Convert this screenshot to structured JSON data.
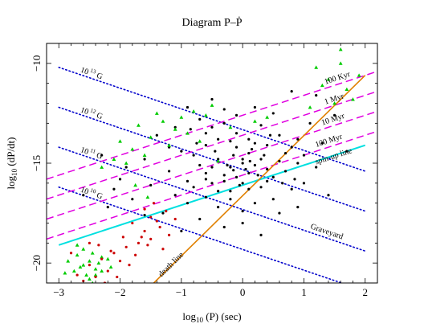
{
  "chart_data": {
    "type": "scatter",
    "title": "Diagram P–Ṗ",
    "xlabel": "log10 (P) (sec)",
    "ylabel": "log10 (dP/dt)",
    "xlim": [
      -3.2,
      2.2
    ],
    "ylim": [
      -21,
      -9
    ],
    "xticks": [
      -3,
      -2,
      -1,
      0,
      1,
      2
    ],
    "yticks": [
      -20,
      -15,
      -10
    ],
    "grid": false,
    "colors": {
      "black": "#000000",
      "green": "#00cc00",
      "red": "#cc0000",
      "field": "#0000cc",
      "age": "#e000e0",
      "spinup": "#00e0e0",
      "death": "#e08000"
    },
    "field_lines": [
      {
        "label": "10",
        "exponent": "13",
        "suffix": "G",
        "x": [
          -3,
          2
        ],
        "y": [
          -10.2,
          -15.4
        ]
      },
      {
        "label": "10",
        "exponent": "12",
        "suffix": "G",
        "x": [
          -3,
          2
        ],
        "y": [
          -12.2,
          -17.4
        ]
      },
      {
        "label": "10",
        "exponent": "11",
        "suffix": "G",
        "x": [
          -3,
          2
        ],
        "y": [
          -14.2,
          -19.4
        ]
      },
      {
        "label": "10",
        "exponent": "10",
        "suffix": "G",
        "x": [
          -3,
          2
        ],
        "y": [
          -16.2,
          -21.4
        ]
      }
    ],
    "age_lines": [
      {
        "label": "100 Kyr",
        "x": [
          -3.2,
          2.2
        ],
        "y": [
          -15.8,
          -10.4
        ]
      },
      {
        "label": "1 Myr",
        "x": [
          -3.2,
          2.2
        ],
        "y": [
          -16.8,
          -11.4
        ]
      },
      {
        "label": "10 Myr",
        "x": [
          -3.2,
          2.2
        ],
        "y": [
          -17.8,
          -12.4
        ]
      },
      {
        "label": "100 Myr",
        "x": [
          -3.2,
          2.2
        ],
        "y": [
          -18.8,
          -13.4
        ]
      }
    ],
    "spinup_line": {
      "label": "spin-up line",
      "x": [
        -3,
        2
      ],
      "y": [
        -19.1,
        -14.1
      ]
    },
    "death_line": {
      "label": "death line",
      "x": [
        -1.45,
        2.0
      ],
      "y": [
        -21,
        -10.6
      ]
    },
    "region_label": "Graveyard",
    "series": [
      {
        "name": "",
        "color": "black",
        "points": [
          [
            -0.6,
            -15.5
          ],
          [
            -0.4,
            -14.8
          ],
          [
            -0.2,
            -15.2
          ],
          [
            0.1,
            -14.5
          ],
          [
            -0.5,
            -16.0
          ],
          [
            -0.3,
            -15.6
          ],
          [
            0.0,
            -15.0
          ],
          [
            -0.1,
            -14.2
          ],
          [
            0.2,
            -15.1
          ],
          [
            0.4,
            -15.3
          ],
          [
            -0.7,
            -15.1
          ],
          [
            -0.8,
            -14.6
          ],
          [
            -0.2,
            -16.4
          ],
          [
            0.3,
            -14.8
          ],
          [
            0.5,
            -15.7
          ],
          [
            0.6,
            -14.9
          ],
          [
            -0.4,
            -13.8
          ],
          [
            -0.1,
            -13.5
          ],
          [
            0.0,
            -16.0
          ],
          [
            0.3,
            -16.2
          ],
          [
            -0.9,
            -15.9
          ],
          [
            -0.6,
            -14.1
          ],
          [
            -0.5,
            -13.2
          ],
          [
            -0.3,
            -13.0
          ],
          [
            0.1,
            -13.8
          ],
          [
            0.4,
            -14.1
          ],
          [
            0.7,
            -15.4
          ],
          [
            0.8,
            -16.3
          ],
          [
            -0.2,
            -16.8
          ],
          [
            0.2,
            -17.0
          ],
          [
            -1.0,
            -14.4
          ],
          [
            -0.6,
            -16.7
          ],
          [
            -0.4,
            -17.2
          ],
          [
            0.0,
            -17.4
          ],
          [
            0.5,
            -16.8
          ],
          [
            0.9,
            -15.0
          ],
          [
            1.0,
            -14.6
          ],
          [
            -0.7,
            -12.8
          ],
          [
            -0.1,
            -12.6
          ],
          [
            0.3,
            -13.1
          ],
          [
            0.6,
            -13.6
          ],
          [
            0.8,
            -14.2
          ],
          [
            -0.3,
            -15.9
          ],
          [
            -0.1,
            -15.7
          ],
          [
            0.1,
            -16.3
          ],
          [
            -0.5,
            -15.2
          ],
          [
            0.2,
            -14.0
          ],
          [
            -0.8,
            -16.2
          ],
          [
            -0.2,
            -13.9
          ],
          [
            0.0,
            -14.8
          ],
          [
            0.4,
            -15.9
          ],
          [
            0.7,
            -14.5
          ],
          [
            -0.4,
            -16.4
          ],
          [
            -0.6,
            -15.8
          ],
          [
            0.1,
            -15.5
          ],
          [
            -0.9,
            -17.0
          ],
          [
            -1.1,
            -16.6
          ],
          [
            -1.2,
            -15.4
          ],
          [
            0.9,
            -13.8
          ],
          [
            1.2,
            -15.2
          ],
          [
            1.1,
            -13.0
          ],
          [
            0.5,
            -12.5
          ],
          [
            0.2,
            -12.2
          ],
          [
            -0.3,
            -12.3
          ],
          [
            -0.6,
            -13.5
          ],
          [
            1.0,
            -16.0
          ],
          [
            -0.15,
            -14.6
          ],
          [
            0.15,
            -14.3
          ],
          [
            0.35,
            -14.6
          ],
          [
            -0.45,
            -14.4
          ],
          [
            0.05,
            -15.3
          ],
          [
            0.25,
            -15.6
          ],
          [
            -0.25,
            -15.1
          ],
          [
            -0.05,
            -16.1
          ],
          [
            0.45,
            -13.6
          ],
          [
            -0.75,
            -14.0
          ],
          [
            0.65,
            -16.0
          ],
          [
            -0.85,
            -13.3
          ],
          [
            0.85,
            -15.8
          ],
          [
            1.3,
            -14.0
          ],
          [
            -1.3,
            -17.5
          ],
          [
            -1.5,
            -16.1
          ],
          [
            0.0,
            -18.0
          ],
          [
            0.6,
            -17.5
          ],
          [
            -0.3,
            -18.2
          ],
          [
            1.4,
            -16.6
          ],
          [
            -1.0,
            -18.4
          ],
          [
            0.3,
            -18.6
          ],
          [
            -0.7,
            -17.8
          ],
          [
            0.9,
            -17.2
          ],
          [
            -2.2,
            -17.2
          ],
          [
            -2.1,
            -16.3
          ],
          [
            -1.8,
            -16.8
          ],
          [
            -1.6,
            -17.6
          ],
          [
            -2.6,
            -16.6
          ],
          [
            1.5,
            -12.6
          ],
          [
            1.7,
            -14.4
          ],
          [
            1.2,
            -11.6
          ],
          [
            0.8,
            -11.4
          ],
          [
            -0.5,
            -11.8
          ],
          [
            -0.9,
            -12.2
          ],
          [
            -1.1,
            -13.2
          ],
          [
            -1.2,
            -14.2
          ],
          [
            -1.4,
            -13.6
          ],
          [
            -1.6,
            -14.8
          ],
          [
            -1.9,
            -15.2
          ],
          [
            -2.0,
            -15.8
          ],
          [
            -2.3,
            -14.6
          ],
          [
            -0.15,
            -15.35
          ],
          [
            0.12,
            -14.9
          ]
        ]
      },
      {
        "name": "",
        "color": "green",
        "points": [
          [
            1.6,
            -9.3
          ],
          [
            1.2,
            -10.2
          ],
          [
            1.4,
            -10.8
          ],
          [
            1.7,
            -11.3
          ],
          [
            1.5,
            -12.0
          ],
          [
            1.8,
            -11.8
          ],
          [
            1.3,
            -11.1
          ],
          [
            1.9,
            -10.6
          ],
          [
            1.1,
            -12.2
          ],
          [
            1.6,
            -10.0
          ],
          [
            -1.0,
            -12.7
          ],
          [
            -1.1,
            -13.3
          ],
          [
            -1.3,
            -12.9
          ],
          [
            -1.5,
            -13.7
          ],
          [
            -0.8,
            -12.4
          ],
          [
            -0.6,
            -12.6
          ],
          [
            -0.7,
            -13.9
          ],
          [
            -1.2,
            -14.1
          ],
          [
            -1.6,
            -14.6
          ],
          [
            -1.7,
            -13.1
          ],
          [
            -0.9,
            -13.5
          ],
          [
            -0.5,
            -12.1
          ],
          [
            -1.4,
            -12.5
          ],
          [
            -1.8,
            -14.3
          ],
          [
            -1.9,
            -15.0
          ],
          [
            -0.4,
            -14.9
          ],
          [
            -0.2,
            -13.2
          ],
          [
            0.2,
            -12.9
          ],
          [
            0.4,
            -12.7
          ],
          [
            -2.0,
            -13.9
          ],
          [
            -2.1,
            -14.8
          ],
          [
            -2.3,
            -15.2
          ],
          [
            -1.55,
            -16.7
          ],
          [
            -1.75,
            -16.1
          ],
          [
            -2.7,
            -19.6
          ],
          [
            -2.6,
            -20.1
          ],
          [
            -2.5,
            -19.9
          ],
          [
            -2.4,
            -20.3
          ],
          [
            -2.3,
            -19.7
          ],
          [
            -2.55,
            -20.6
          ],
          [
            -2.65,
            -20.2
          ],
          [
            -2.45,
            -19.5
          ],
          [
            -2.35,
            -20.0
          ],
          [
            -2.75,
            -20.4
          ],
          [
            -2.2,
            -19.8
          ],
          [
            -2.5,
            -20.8
          ],
          [
            -2.85,
            -19.9
          ],
          [
            -2.6,
            -19.3
          ],
          [
            -2.4,
            -20.6
          ],
          [
            -2.9,
            -20.5
          ],
          [
            -2.3,
            -20.4
          ],
          [
            -2.7,
            -19.1
          ],
          [
            -2.15,
            -20.2
          ],
          [
            -2.45,
            -21.0
          ]
        ]
      },
      {
        "name": "",
        "color": "red",
        "points": [
          [
            -2.5,
            -20.1
          ],
          [
            -2.3,
            -19.8
          ],
          [
            -2.1,
            -19.5
          ],
          [
            -1.9,
            -19.2
          ],
          [
            -1.7,
            -19.0
          ],
          [
            -1.5,
            -18.8
          ],
          [
            -1.3,
            -19.3
          ],
          [
            -1.6,
            -18.4
          ],
          [
            -1.4,
            -17.9
          ],
          [
            -1.2,
            -18.6
          ],
          [
            -2.0,
            -19.9
          ],
          [
            -2.2,
            -20.4
          ],
          [
            -2.4,
            -20.7
          ],
          [
            -2.6,
            -20.9
          ],
          [
            -2.7,
            -20.6
          ],
          [
            -2.8,
            -19.5
          ],
          [
            -2.35,
            -19.1
          ],
          [
            -1.8,
            -18.0
          ],
          [
            -1.6,
            -17.3
          ],
          [
            -1.45,
            -17.0
          ],
          [
            -1.75,
            -19.6
          ],
          [
            -1.35,
            -18.2
          ],
          [
            -1.1,
            -17.8
          ],
          [
            -1.55,
            -19.1
          ],
          [
            -2.05,
            -20.7
          ],
          [
            -2.25,
            -21.0
          ],
          [
            -1.95,
            -18.7
          ],
          [
            -1.25,
            -17.4
          ],
          [
            -2.5,
            -19.0
          ],
          [
            -1.65,
            -18.7
          ],
          [
            -2.15,
            -19.4
          ],
          [
            -1.85,
            -20.1
          ],
          [
            -1.5,
            -17.7
          ]
        ]
      }
    ]
  }
}
